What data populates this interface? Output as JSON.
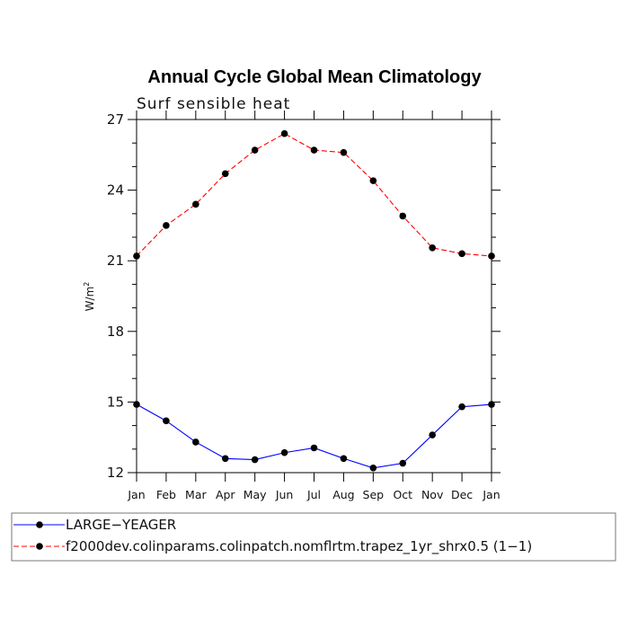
{
  "chart_data": {
    "type": "line",
    "title": "Annual Cycle Global Mean Climatology",
    "subtitle": "Surf sensible heat",
    "ylabel_base": "W/m",
    "ylabel_exp": "2",
    "xlabel": "",
    "categories": [
      "Jan",
      "Feb",
      "Mar",
      "Apr",
      "May",
      "Jun",
      "Jul",
      "Aug",
      "Sep",
      "Oct",
      "Nov",
      "Dec",
      "Jan"
    ],
    "ylim": [
      12,
      27
    ],
    "yticks": [
      "12",
      "15",
      "18",
      "21",
      "24",
      "27"
    ],
    "grid": false,
    "legend_position": "bottom",
    "series": [
      {
        "name": "LARGE−YEAGER",
        "color": "#0000ff",
        "line_style": "solid",
        "marker": "filled-circle",
        "values": [
          14.9,
          14.2,
          13.3,
          12.6,
          12.55,
          12.85,
          13.05,
          12.6,
          12.2,
          12.4,
          13.6,
          14.8,
          14.9
        ]
      },
      {
        "name": "f2000dev.colinparams.colinpatch.nomflrtm.trapez_1yr_shrx0.5 (1−1)",
        "color": "#ff0000",
        "line_style": "dashed",
        "marker": "filled-circle",
        "values": [
          21.2,
          22.5,
          23.4,
          24.7,
          25.7,
          26.4,
          25.7,
          25.6,
          24.4,
          22.9,
          21.55,
          21.3,
          21.2
        ]
      }
    ]
  }
}
